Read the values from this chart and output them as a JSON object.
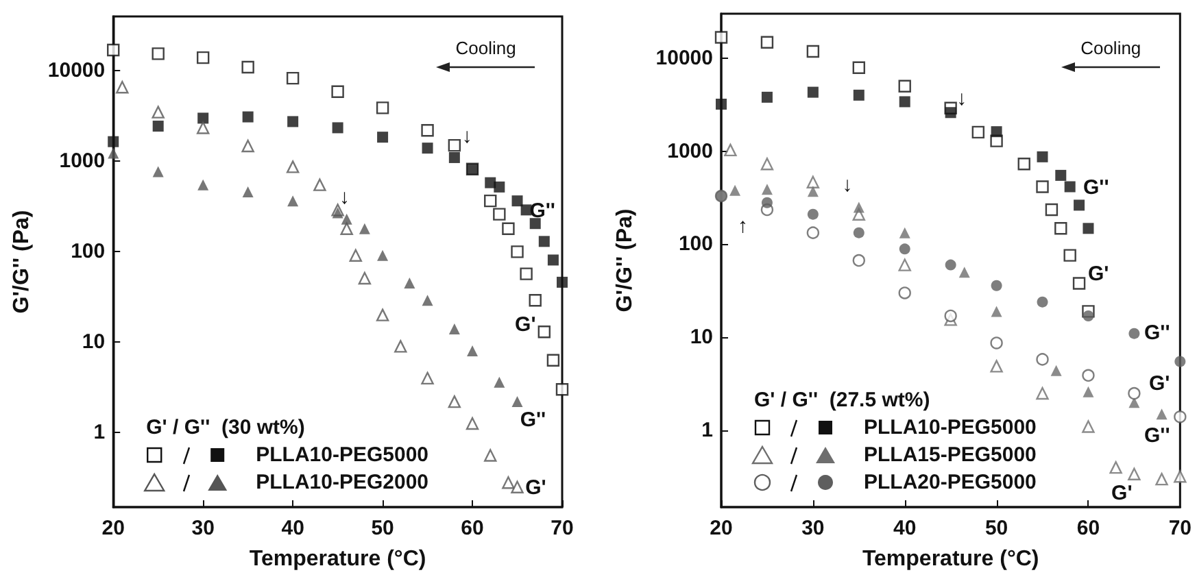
{
  "chart_data": [
    {
      "type": "scatter",
      "xlabel": "Temperature (°C)",
      "ylabel": "G'/G'' (Pa)",
      "legend_title": "G' / G''  (30 wt%)",
      "legend": "bottom left",
      "log": "y",
      "xlim": [
        20,
        70
      ],
      "xticks": [
        20,
        30,
        40,
        50,
        60,
        70
      ],
      "ylim": [
        0.15,
        40000
      ],
      "yticks": [
        1,
        10,
        100,
        1000,
        10000
      ],
      "annotations": [
        "Cooling",
        "↓",
        "↓",
        "G''",
        "G'",
        "G''",
        "G'"
      ],
      "series": [
        {
          "color": "#111111",
          "marker": "square",
          "x": [
            20,
            25,
            30,
            35,
            40,
            45,
            50,
            55,
            58,
            60,
            62,
            63,
            64,
            65,
            66,
            67,
            68,
            69,
            70
          ],
          "values": [
            17000,
            15500,
            14000,
            11000,
            8300,
            5900,
            3900,
            2200,
            1500,
            820,
            365,
            260,
            180,
            100,
            57,
            29,
            13,
            6.3,
            3
          ]
        },
        {
          "name": "PLLA10-PEG5000",
          "color": "#111111",
          "marker": "square",
          "x": [
            20,
            25,
            30,
            35,
            40,
            45,
            50,
            55,
            58,
            60,
            62,
            63,
            65,
            66,
            67,
            68,
            69,
            70
          ],
          "values": [
            1650,
            2450,
            3000,
            3100,
            2750,
            2350,
            1850,
            1400,
            1100,
            820,
            580,
            520,
            365,
            290,
            205,
            130,
            81,
            46
          ]
        },
        {
          "color": "#555555",
          "marker": "triangle",
          "x": [
            21,
            25,
            30,
            35,
            40,
            43,
            45,
            46,
            47,
            48,
            50,
            52,
            55,
            58,
            60,
            62,
            64,
            65
          ],
          "values": [
            6600,
            3500,
            2350,
            1480,
            870,
            550,
            290,
            180,
            91,
            51,
            20,
            9,
            4,
            2.2,
            1.26,
            0.56,
            0.28,
            0.25
          ]
        },
        {
          "name": "PLLA10-PEG2000",
          "color": "#555555",
          "marker": "triangle",
          "x": [
            20,
            25,
            30,
            35,
            40,
            45,
            46,
            48,
            50,
            53,
            55,
            58,
            60,
            63,
            65
          ],
          "values": [
            1230,
            770,
            550,
            460,
            365,
            270,
            230,
            180,
            91,
            45,
            29,
            14,
            8,
            3.6,
            2.2
          ]
        }
      ]
    },
    {
      "type": "scatter",
      "xlabel": "Temperature (°C)",
      "ylabel": "G'/G'' (Pa)",
      "legend_title": "G' / G''  (27.5 wt%)",
      "legend": "bottom left",
      "log": "y",
      "xlim": [
        20,
        70
      ],
      "xticks": [
        20,
        30,
        40,
        50,
        60,
        70
      ],
      "ylim": [
        0.15,
        30000
      ],
      "yticks": [
        1,
        10,
        100,
        1000,
        10000
      ],
      "annotations": [
        "Cooling",
        "↓",
        "↓",
        "↑",
        "G''",
        "G'",
        "G''",
        "G'",
        "G''",
        "G'"
      ],
      "series": [
        {
          "color": "#111111",
          "marker": "square",
          "x": [
            20,
            25,
            30,
            35,
            40,
            45,
            48,
            50,
            53,
            55,
            56,
            57,
            58,
            59,
            60
          ],
          "values": [
            16700,
            14800,
            11800,
            7900,
            5000,
            2900,
            1600,
            1290,
            730,
            415,
            235,
            148,
            76,
            38,
            19
          ]
        },
        {
          "name": "PLLA10-PEG5000",
          "color": "#111111",
          "marker": "square",
          "x": [
            20,
            25,
            30,
            35,
            40,
            45,
            50,
            55,
            57,
            58,
            59,
            60
          ],
          "values": [
            3200,
            3800,
            4300,
            4000,
            3400,
            2600,
            1620,
            870,
            550,
            415,
            263,
            148
          ]
        },
        {
          "color": "#6e6e6e",
          "marker": "triangle",
          "x": [
            21,
            25,
            30,
            35,
            40,
            45,
            50,
            55,
            60,
            63,
            65,
            68,
            70
          ],
          "values": [
            1030,
            730,
            465,
            210,
            60,
            15.5,
            4.9,
            2.5,
            1.1,
            0.4,
            0.34,
            0.3,
            0.32
          ]
        },
        {
          "name": "PLLA15-PEG5000",
          "color": "#6e6e6e",
          "marker": "triangle",
          "x": [
            21.5,
            25,
            30,
            35,
            40,
            46.5,
            50,
            56.5,
            60,
            65,
            68
          ],
          "values": [
            380,
            390,
            370,
            250,
            133,
            50,
            19,
            4.4,
            2.6,
            2,
            1.5
          ]
        },
        {
          "color": "#5e5e5e",
          "marker": "circle",
          "x": [
            20,
            25,
            30,
            35,
            40,
            45,
            50,
            55,
            60,
            65,
            70
          ],
          "values": [
            330,
            235,
            133,
            67,
            30,
            17,
            8.7,
            5.8,
            3.9,
            2.5,
            1.4
          ]
        },
        {
          "name": "PLLA20-PEG5000",
          "color": "#5e5e5e",
          "marker": "circle",
          "x": [
            20,
            25,
            30,
            35,
            40,
            45,
            50,
            55,
            60,
            65,
            70
          ],
          "values": [
            330,
            280,
            210,
            133,
            89,
            60,
            36,
            24,
            17,
            11,
            5.5
          ]
        }
      ]
    }
  ]
}
